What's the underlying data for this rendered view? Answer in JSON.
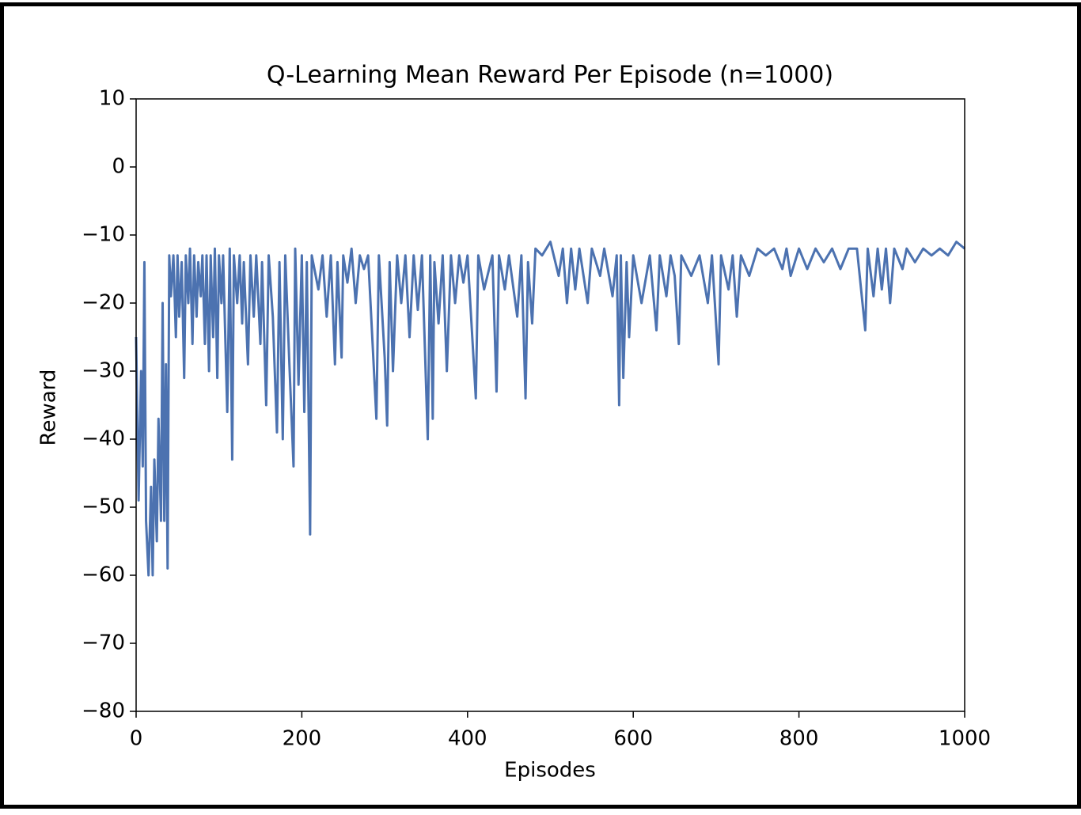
{
  "chart_data": {
    "type": "line",
    "title": "Q-Learning Mean Reward Per Episode (n=1000)",
    "x_label": "Episodes",
    "y_label": "Reward",
    "x": [
      0,
      3,
      6,
      8,
      10,
      12,
      15,
      18,
      20,
      22,
      25,
      27,
      30,
      32,
      34,
      36,
      38,
      40,
      42,
      45,
      48,
      50,
      52,
      55,
      58,
      60,
      63,
      65,
      68,
      70,
      73,
      75,
      78,
      80,
      83,
      85,
      88,
      90,
      93,
      95,
      98,
      100,
      103,
      105,
      110,
      113,
      116,
      118,
      122,
      125,
      128,
      130,
      135,
      138,
      142,
      145,
      150,
      152,
      157,
      160,
      165,
      170,
      173,
      177,
      180,
      185,
      190,
      192,
      196,
      200,
      203,
      206,
      210,
      212,
      220,
      225,
      230,
      235,
      240,
      243,
      248,
      250,
      255,
      260,
      265,
      270,
      275,
      280,
      290,
      293,
      300,
      303,
      306,
      310,
      315,
      320,
      325,
      330,
      335,
      340,
      345,
      352,
      355,
      358,
      360,
      365,
      370,
      375,
      380,
      385,
      390,
      395,
      400,
      410,
      413,
      420,
      430,
      435,
      438,
      445,
      450,
      460,
      465,
      470,
      473,
      478,
      482,
      490,
      500,
      510,
      515,
      520,
      525,
      530,
      535,
      545,
      550,
      560,
      565,
      575,
      580,
      583,
      585,
      588,
      592,
      595,
      600,
      610,
      620,
      628,
      632,
      640,
      645,
      650,
      655,
      658,
      670,
      680,
      690,
      695,
      703,
      706,
      715,
      720,
      725,
      730,
      740,
      750,
      760,
      770,
      780,
      785,
      790,
      800,
      810,
      820,
      830,
      840,
      850,
      860,
      870,
      880,
      883,
      890,
      895,
      900,
      905,
      910,
      915,
      925,
      930,
      940,
      950,
      960,
      970,
      980,
      990,
      1000
    ],
    "series": [
      {
        "color": "#4c72b0",
        "values": [
          -25,
          -49,
          -30,
          -44,
          -14,
          -52,
          -60,
          -47,
          -60,
          -43,
          -55,
          -37,
          -52,
          -20,
          -52,
          -29,
          -59,
          -13,
          -19,
          -13,
          -25,
          -13,
          -22,
          -14,
          -31,
          -13,
          -20,
          -12,
          -26,
          -13,
          -22,
          -14,
          -19,
          -13,
          -26,
          -13,
          -30,
          -13,
          -25,
          -12,
          -31,
          -13,
          -20,
          -13,
          -36,
          -12,
          -43,
          -13,
          -20,
          -13,
          -23,
          -14,
          -29,
          -13,
          -22,
          -13,
          -26,
          -14,
          -35,
          -13,
          -22,
          -39,
          -14,
          -40,
          -13,
          -29,
          -44,
          -12,
          -32,
          -13,
          -36,
          -14,
          -54,
          -13,
          -18,
          -13,
          -22,
          -13,
          -29,
          -14,
          -28,
          -13,
          -17,
          -12,
          -20,
          -13,
          -15,
          -13,
          -37,
          -13,
          -28,
          -38,
          -14,
          -30,
          -13,
          -20,
          -13,
          -25,
          -13,
          -21,
          -13,
          -40,
          -13,
          -37,
          -14,
          -23,
          -13,
          -30,
          -13,
          -20,
          -13,
          -17,
          -13,
          -34,
          -13,
          -18,
          -13,
          -33,
          -13,
          -18,
          -13,
          -22,
          -13,
          -34,
          -14,
          -23,
          -12,
          -13,
          -11,
          -16,
          -12,
          -20,
          -12,
          -18,
          -12,
          -20,
          -12,
          -16,
          -12,
          -19,
          -13,
          -35,
          -13,
          -31,
          -14,
          -25,
          -13,
          -20,
          -13,
          -24,
          -13,
          -19,
          -13,
          -16,
          -26,
          -13,
          -16,
          -13,
          -20,
          -13,
          -29,
          -13,
          -18,
          -13,
          -22,
          -13,
          -16,
          -12,
          -13,
          -12,
          -15,
          -12,
          -16,
          -12,
          -15,
          -12,
          -14,
          -12,
          -15,
          -12,
          -12,
          -24,
          -12,
          -19,
          -12,
          -18,
          -12,
          -20,
          -12,
          -15,
          -12,
          -14,
          -12,
          -13,
          -12,
          -13,
          -11,
          -12
        ]
      }
    ],
    "xlim": [
      0,
      1000
    ],
    "xticks": [
      0,
      200,
      400,
      600,
      800,
      1000
    ],
    "ylim": [
      -80,
      10
    ],
    "yticks": [
      {
        "value": -80,
        "label": "−80"
      },
      {
        "value": -70,
        "label": "−70"
      },
      {
        "value": -60,
        "label": "−60"
      },
      {
        "value": -50,
        "label": "−50"
      },
      {
        "value": -40,
        "label": "−40"
      },
      {
        "value": -30,
        "label": "−30"
      },
      {
        "value": -20,
        "label": "−20"
      },
      {
        "value": -10,
        "label": "−10"
      },
      0,
      10
    ],
    "grid": false
  }
}
